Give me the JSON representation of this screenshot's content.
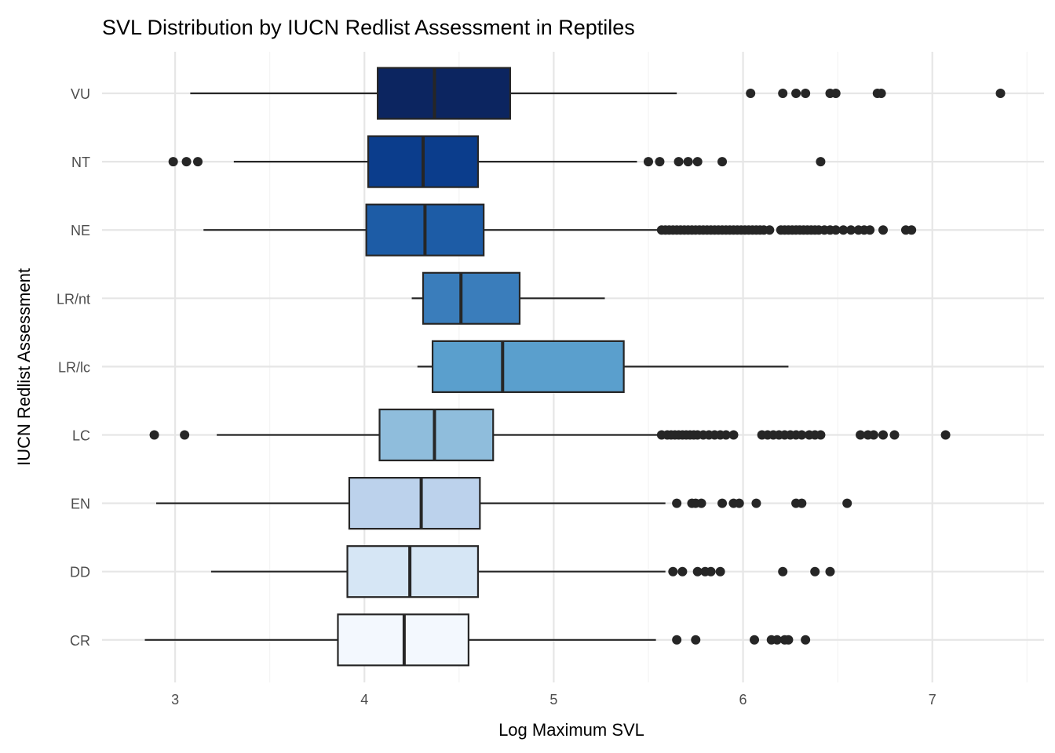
{
  "chart_data": {
    "type": "boxplot",
    "orientation": "horizontal",
    "title": "SVL Distribution by IUCN Redlist Assessment in Reptiles",
    "xlabel": "Log Maximum SVL",
    "ylabel": "IUCN Redlist Assessment",
    "xlim": [
      2.614,
      7.59
    ],
    "xticks": [
      3,
      4,
      5,
      6,
      7
    ],
    "grid": true,
    "legend": "none",
    "series": [
      {
        "name": "VU",
        "color": "#0c2560",
        "whisker_low": 3.08,
        "q1": 4.07,
        "median": 4.37,
        "q3": 4.77,
        "whisker_high": 5.65,
        "outliers": [
          6.04,
          6.21,
          6.28,
          6.33,
          6.46,
          6.49,
          6.71,
          6.73,
          7.36
        ]
      },
      {
        "name": "NT",
        "color": "#0b3d8c",
        "whisker_low": 3.31,
        "q1": 4.02,
        "median": 4.31,
        "q3": 4.6,
        "whisker_high": 5.44,
        "outliers": [
          2.99,
          3.06,
          3.12,
          5.5,
          5.56,
          5.66,
          5.71,
          5.76,
          5.89,
          6.41
        ]
      },
      {
        "name": "NE",
        "color": "#1d5ca6",
        "whisker_low": 3.15,
        "q1": 4.01,
        "median": 4.32,
        "q3": 4.63,
        "whisker_high": 5.56,
        "outliers": [
          5.57,
          5.59,
          5.61,
          5.63,
          5.65,
          5.67,
          5.69,
          5.71,
          5.73,
          5.75,
          5.77,
          5.79,
          5.81,
          5.83,
          5.85,
          5.87,
          5.89,
          5.91,
          5.93,
          5.95,
          5.97,
          5.99,
          6.01,
          6.03,
          6.05,
          6.07,
          6.09,
          6.11,
          6.14,
          6.2,
          6.22,
          6.24,
          6.26,
          6.28,
          6.3,
          6.32,
          6.34,
          6.36,
          6.38,
          6.4,
          6.43,
          6.46,
          6.49,
          6.53,
          6.57,
          6.61,
          6.64,
          6.67,
          6.74,
          6.86,
          6.89
        ]
      },
      {
        "name": "LR/nt",
        "color": "#3a7dbb",
        "whisker_low": 4.25,
        "q1": 4.31,
        "median": 4.51,
        "q3": 4.82,
        "whisker_high": 5.27,
        "outliers": []
      },
      {
        "name": "LR/lc",
        "color": "#5a9fcd",
        "whisker_low": 4.28,
        "q1": 4.36,
        "median": 4.73,
        "q3": 5.37,
        "whisker_high": 6.24,
        "outliers": []
      },
      {
        "name": "LC",
        "color": "#8fbddc",
        "whisker_low": 3.22,
        "q1": 4.08,
        "median": 4.37,
        "q3": 4.68,
        "whisker_high": 5.56,
        "outliers": [
          2.89,
          3.05,
          5.57,
          5.6,
          5.62,
          5.64,
          5.66,
          5.68,
          5.7,
          5.72,
          5.74,
          5.76,
          5.79,
          5.82,
          5.85,
          5.88,
          5.91,
          5.95,
          6.1,
          6.13,
          6.16,
          6.19,
          6.22,
          6.25,
          6.28,
          6.31,
          6.35,
          6.38,
          6.41,
          6.62,
          6.66,
          6.69,
          6.74,
          6.8,
          7.07
        ]
      },
      {
        "name": "EN",
        "color": "#bcd2ec",
        "whisker_low": 2.9,
        "q1": 3.92,
        "median": 4.3,
        "q3": 4.61,
        "whisker_high": 5.59,
        "outliers": [
          5.65,
          5.73,
          5.75,
          5.78,
          5.89,
          5.95,
          5.98,
          6.07,
          6.28,
          6.31,
          6.55
        ]
      },
      {
        "name": "DD",
        "color": "#d6e6f5",
        "whisker_low": 3.19,
        "q1": 3.91,
        "median": 4.24,
        "q3": 4.6,
        "whisker_high": 5.59,
        "outliers": [
          5.63,
          5.68,
          5.76,
          5.8,
          5.83,
          5.88,
          6.21,
          6.38,
          6.46
        ]
      },
      {
        "name": "CR",
        "color": "#f3f8fe",
        "whisker_low": 2.84,
        "q1": 3.86,
        "median": 4.21,
        "q3": 4.55,
        "whisker_high": 5.54,
        "outliers": [
          5.65,
          5.75,
          6.06,
          6.15,
          6.18,
          6.22,
          6.24,
          6.33
        ]
      }
    ]
  }
}
